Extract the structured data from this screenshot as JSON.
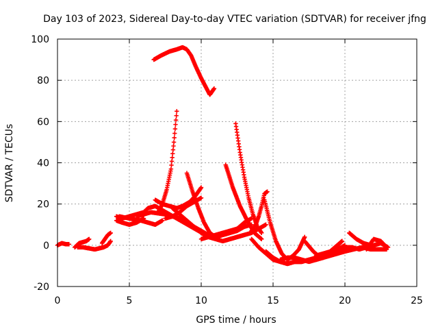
{
  "chart_data": {
    "type": "scatter",
    "title": "Day 103 of 2023, Sidereal Day-to-day VTEC variation (SDTVAR) for receiver jfng",
    "xlabel": "GPS time / hours",
    "ylabel": "SDTVAR / TECUs",
    "xlim": [
      0,
      25
    ],
    "ylim": [
      -20,
      100
    ],
    "xticks": [
      "0",
      "5",
      "10",
      "15",
      "20",
      "25"
    ],
    "yticks": [
      "-20",
      "0",
      "20",
      "40",
      "60",
      "80",
      "100"
    ],
    "grid": true,
    "marker": "plus",
    "color": "#ff0000",
    "series": [
      {
        "x": [
          0.0,
          0.3,
          0.6,
          0.8
        ],
        "y": [
          0,
          1,
          0.5,
          0.5
        ]
      },
      {
        "x": [
          1.2,
          1.5,
          2.0,
          2.2
        ],
        "y": [
          -1,
          1,
          2,
          3
        ]
      },
      {
        "x": [
          1.4,
          1.8,
          2.2,
          2.6,
          2.9,
          3.2
        ],
        "y": [
          -1,
          -1,
          -1.5,
          -2,
          -1.5,
          -1
        ]
      },
      {
        "x": [
          3.1,
          3.3,
          3.5,
          3.7
        ],
        "y": [
          1,
          3,
          5,
          6
        ]
      },
      {
        "x": [
          3.2,
          3.5,
          3.7
        ],
        "y": [
          -1,
          0,
          2
        ]
      },
      {
        "x": [
          4.1,
          4.5,
          5.0,
          5.5,
          6.0,
          6.3
        ],
        "y": [
          14,
          13,
          14,
          15,
          16,
          18
        ]
      },
      {
        "x": [
          4.1,
          4.5,
          5.0,
          5.5,
          6.0
        ],
        "y": [
          12,
          11,
          10,
          11,
          13
        ]
      },
      {
        "x": [
          4.3,
          5.0,
          5.8,
          6.3,
          6.8,
          7.3
        ],
        "y": [
          14,
          13,
          12,
          11,
          10,
          12
        ]
      },
      {
        "x": [
          5.5,
          6.5,
          7.5,
          8.0,
          8.5,
          9.0,
          9.5,
          10.0,
          10.5,
          11.0,
          11.5,
          12.0,
          12.5,
          13.0
        ],
        "y": [
          14,
          16,
          15,
          14,
          13,
          11,
          9,
          7,
          5,
          4,
          5,
          6,
          7,
          9
        ]
      },
      {
        "x": [
          6.7,
          7.2,
          7.8,
          8.3,
          8.7,
          9.0,
          9.3,
          9.6,
          10.0,
          10.3,
          10.6,
          10.9
        ],
        "y": [
          90,
          92,
          94,
          95,
          96,
          95,
          92,
          87,
          81,
          77,
          73,
          76
        ]
      },
      {
        "x": [
          6.3,
          6.8,
          7.3,
          7.8,
          8.3,
          8.8,
          9.3,
          9.8,
          10.1
        ],
        "y": [
          18,
          19,
          17,
          15,
          13,
          11,
          9,
          7,
          6
        ]
      },
      {
        "x": [
          6.8,
          7.3,
          7.8,
          8.3,
          8.7,
          9.2,
          9.6,
          10.0
        ],
        "y": [
          22,
          20,
          19,
          18,
          19,
          21,
          24,
          28
        ]
      },
      {
        "x": [
          7.0,
          7.3,
          7.6,
          7.9,
          8.1,
          8.3
        ],
        "y": [
          16,
          20,
          27,
          37,
          50,
          65
        ]
      },
      {
        "x": [
          7.5,
          8.0,
          8.5,
          9.0,
          9.5,
          10.0
        ],
        "y": [
          13,
          14,
          16,
          19,
          21,
          23
        ]
      },
      {
        "x": [
          8.0,
          8.5,
          9.0,
          9.5,
          10.0,
          10.5,
          11.0,
          11.5,
          12.0,
          12.5,
          13.0
        ],
        "y": [
          18,
          15,
          12,
          9,
          6,
          4,
          3,
          2,
          3,
          4,
          5
        ]
      },
      {
        "x": [
          9.0,
          9.4,
          9.8,
          10.2,
          10.6,
          11.0,
          11.5,
          12.0,
          12.5,
          13.0,
          13.5
        ],
        "y": [
          35,
          26,
          18,
          11,
          6,
          4,
          5,
          6,
          8,
          11,
          13
        ]
      },
      {
        "x": [
          10.0,
          10.5,
          11.0,
          11.5,
          12.0,
          12.5,
          13.0,
          13.5
        ],
        "y": [
          3,
          4,
          5,
          6,
          7,
          8,
          9,
          10
        ]
      },
      {
        "x": [
          11.5,
          12.0,
          12.5,
          13.0,
          13.5,
          14.0,
          14.5
        ],
        "y": [
          2,
          3,
          4,
          5,
          6,
          8,
          10
        ]
      },
      {
        "x": [
          11.7,
          12.2,
          12.7,
          13.2,
          13.7,
          14.2
        ],
        "y": [
          39,
          28,
          19,
          12,
          6,
          3
        ]
      },
      {
        "x": [
          12.4,
          12.7,
          13.0,
          13.3,
          13.6,
          13.9,
          14.2
        ],
        "y": [
          59,
          45,
          33,
          23,
          15,
          9,
          6
        ]
      },
      {
        "x": [
          13.5,
          13.8,
          14.0,
          14.2,
          14.4,
          14.6
        ],
        "y": [
          7,
          10,
          14,
          19,
          25,
          26
        ]
      },
      {
        "x": [
          14.4,
          14.8,
          15.2,
          15.6,
          16.0,
          16.4,
          16.8,
          17.2
        ],
        "y": [
          22,
          11,
          2,
          -4,
          -7,
          -5,
          -2,
          4
        ]
      },
      {
        "x": [
          13.5,
          14.0,
          14.5,
          15.0,
          15.5,
          16.0,
          16.5,
          17.0,
          17.5,
          18.0,
          18.5,
          19.0
        ],
        "y": [
          3,
          -1,
          -4,
          -7,
          -8,
          -9,
          -8,
          -8,
          -7,
          -6,
          -5,
          -4
        ]
      },
      {
        "x": [
          14.5,
          15.0,
          15.5,
          16.0,
          16.5,
          17.0,
          17.5,
          18.0,
          18.5,
          19.0,
          19.5,
          20.0
        ],
        "y": [
          -3,
          -6,
          -8,
          -9,
          -8,
          -8,
          -7,
          -7,
          -6,
          -5,
          -4,
          -3
        ]
      },
      {
        "x": [
          15.5,
          16.0,
          16.5,
          17.0,
          17.5,
          18.0,
          18.5,
          19.0,
          19.5,
          20.0
        ],
        "y": [
          -7,
          -6,
          -6,
          -7,
          -8,
          -7,
          -6,
          -4,
          -2,
          0
        ]
      },
      {
        "x": [
          17.2,
          17.8,
          18.3,
          18.8,
          19.3,
          19.8
        ],
        "y": [
          2,
          -3,
          -6,
          -4,
          -1,
          2
        ]
      },
      {
        "x": [
          18.0,
          18.5,
          19.0,
          19.5,
          19.8
        ],
        "y": [
          -5,
          -4,
          -3,
          0,
          2
        ]
      },
      {
        "x": [
          19.5,
          20.0,
          20.5,
          21.0,
          21.5,
          22.0,
          22.5,
          23.0
        ],
        "y": [
          -2,
          -1,
          -1,
          -2,
          -1,
          0,
          1,
          -1
        ]
      },
      {
        "x": [
          20.3,
          20.8,
          21.3,
          21.8
        ],
        "y": [
          6,
          3,
          1,
          0
        ]
      },
      {
        "x": [
          20.0,
          20.6,
          21.2,
          21.8,
          22.4,
          22.9
        ],
        "y": [
          -3,
          -2,
          -1,
          -2,
          -2,
          -2
        ]
      },
      {
        "x": [
          21.5,
          22.0,
          22.5,
          22.9
        ],
        "y": [
          -2,
          3,
          2,
          -1
        ]
      }
    ]
  }
}
